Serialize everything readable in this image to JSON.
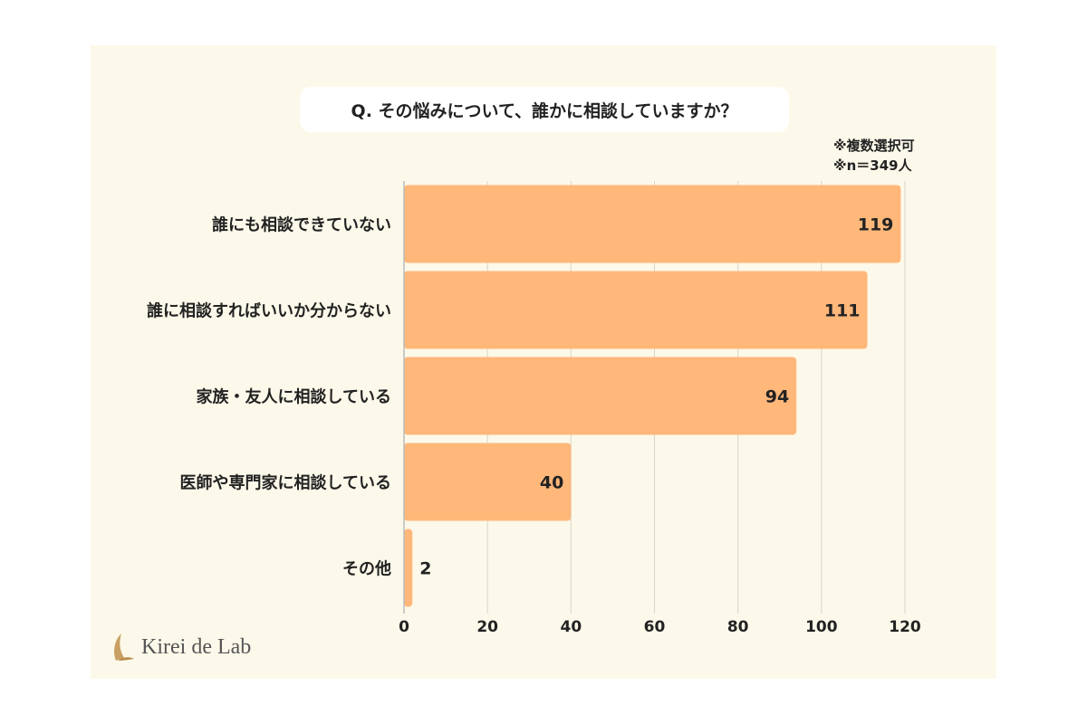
{
  "title": "Q. その悩みについて、誰かに相談していますか？",
  "notes": [
    "※複数選択可",
    "※n＝349人"
  ],
  "brand": "Kirei de Lab",
  "colors": {
    "bar": "#ffb77a",
    "background": "#fdf9ea",
    "grid": "#d9d5c8"
  },
  "chart_data": {
    "type": "bar",
    "orientation": "horizontal",
    "categories": [
      "誰にも相談できていない",
      "誰に相談すればいいか分からない",
      "家族・友人に相談している",
      "医師や専門家に相談している",
      "その他"
    ],
    "values": [
      119,
      111,
      94,
      40,
      2
    ],
    "xlim": [
      0,
      120
    ],
    "xticks": [
      0,
      20,
      40,
      60,
      80,
      100,
      120
    ],
    "grid": true
  }
}
